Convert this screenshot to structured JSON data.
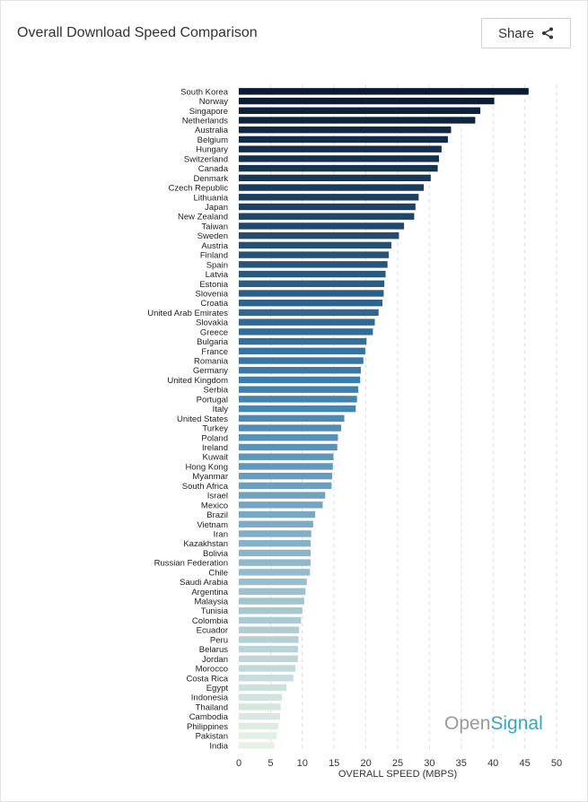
{
  "header": {
    "title": "Overall Download Speed Comparison",
    "share_label": "Share"
  },
  "branding": {
    "part1": "Open",
    "part2": "Signal"
  },
  "colors": {
    "bar_dark": "#0a1a33",
    "bar_mid": "#3c7fae",
    "bar_light": "#e7f2e5",
    "grid": "#dddddd",
    "brand_gray": "#9a9a9a",
    "brand_teal": "#3aa7c2"
  },
  "icons": {
    "share": "share-icon"
  },
  "chart_data": {
    "type": "bar",
    "orientation": "horizontal",
    "title": "Overall Download Speed Comparison",
    "xlabel": "OVERALL SPEED (MBPS)",
    "ylabel": "",
    "xlim": [
      0,
      50
    ],
    "xticks": [
      0,
      5,
      10,
      15,
      20,
      25,
      30,
      35,
      40,
      45,
      50
    ],
    "grid": "vertical dashed",
    "categories": [
      "South Korea",
      "Norway",
      "Singapore",
      "Netherlands",
      "Australia",
      "Belgium",
      "Hungary",
      "Switzerland",
      "Canada",
      "Denmark",
      "Czech Republic",
      "Lithuania",
      "Japan",
      "New Zealand",
      "Taiwan",
      "Sweden",
      "Austria",
      "Finland",
      "Spain",
      "Latvia",
      "Estonia",
      "Slovenia",
      "Croatia",
      "United Arab Emirates",
      "Slovakia",
      "Greece",
      "Bulgaria",
      "France",
      "Romania",
      "Germany",
      "United Kingdom",
      "Serbia",
      "Portugal",
      "Italy",
      "United States",
      "Turkey",
      "Poland",
      "Ireland",
      "Kuwait",
      "Hong Kong",
      "Myanmar",
      "South Africa",
      "Israel",
      "Mexico",
      "Brazil",
      "Vietnam",
      "Iran",
      "Kazakhstan",
      "Bolivia",
      "Russian Federation",
      "Chile",
      "Saudi Arabia",
      "Argentina",
      "Malaysia",
      "Tunisia",
      "Colombia",
      "Ecuador",
      "Peru",
      "Belarus",
      "Jordan",
      "Morocco",
      "Costa Rica",
      "Egypt",
      "Indonesia",
      "Thailand",
      "Cambodia",
      "Philippines",
      "Pakistan",
      "India"
    ],
    "values": [
      45.6,
      40.2,
      38.0,
      37.2,
      33.4,
      32.9,
      31.9,
      31.5,
      31.3,
      30.2,
      29.1,
      28.3,
      27.8,
      27.6,
      26.0,
      25.2,
      24.0,
      23.6,
      23.4,
      23.1,
      22.9,
      22.8,
      22.6,
      22.0,
      21.4,
      21.1,
      20.1,
      19.9,
      19.6,
      19.2,
      19.1,
      18.8,
      18.6,
      18.4,
      16.6,
      16.1,
      15.6,
      15.5,
      14.9,
      14.8,
      14.7,
      14.6,
      13.6,
      13.2,
      12.0,
      11.7,
      11.4,
      11.3,
      11.3,
      11.3,
      11.2,
      10.7,
      10.5,
      10.3,
      10.0,
      9.8,
      9.5,
      9.4,
      9.3,
      9.3,
      8.9,
      8.6,
      7.5,
      6.8,
      6.6,
      6.5,
      6.2,
      6.0,
      5.6
    ]
  }
}
